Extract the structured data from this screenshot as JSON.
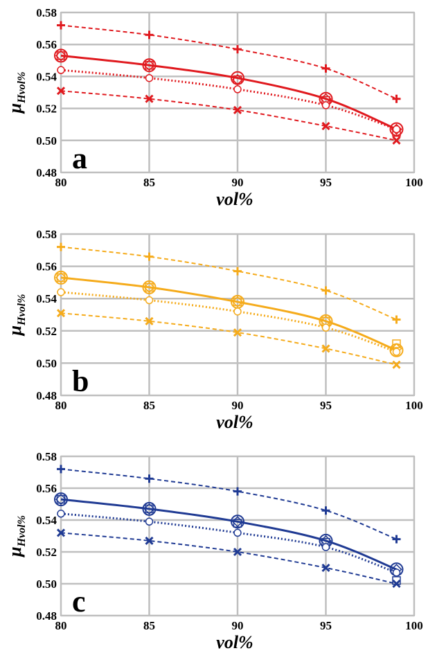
{
  "chart_data": [
    {
      "type": "line",
      "panel_label": "a",
      "color": "#e0191e",
      "xlabel": "vol%",
      "ylabel_main": "μ",
      "ylabel_sub": "Hvol%",
      "xlim": [
        80,
        100
      ],
      "ylim": [
        0.48,
        0.58
      ],
      "xticks": [
        "80",
        "85",
        "90",
        "95",
        "100"
      ],
      "yticks": [
        "0.48",
        "0.50",
        "0.52",
        "0.54",
        "0.56",
        "0.58"
      ],
      "grid": true,
      "x": [
        80,
        85,
        90,
        95,
        99
      ],
      "series": [
        {
          "marker": "plus",
          "line": "dashed",
          "values": [
            0.572,
            0.566,
            0.557,
            0.545,
            0.526
          ]
        },
        {
          "marker": "circle-large",
          "line": "solid",
          "values": [
            0.553,
            0.547,
            0.539,
            0.526,
            0.507
          ]
        },
        {
          "marker": "diamond",
          "line": "none",
          "values": [
            0.553,
            0.547,
            0.538,
            0.526,
            0.507
          ]
        },
        {
          "marker": "square",
          "line": "none",
          "values": [
            0.553,
            0.547,
            0.538,
            0.525,
            0.505
          ]
        },
        {
          "marker": "circle-small",
          "line": "dotted",
          "values": [
            0.544,
            0.539,
            0.532,
            0.522,
            0.507
          ]
        },
        {
          "marker": "cross",
          "line": "dashed",
          "values": [
            0.531,
            0.526,
            0.519,
            0.509,
            0.5
          ]
        }
      ]
    },
    {
      "type": "line",
      "panel_label": "b",
      "color": "#f5ab1b",
      "xlabel": "vol%",
      "ylabel_main": "μ",
      "ylabel_sub": "Hvol%",
      "xlim": [
        80,
        100
      ],
      "ylim": [
        0.48,
        0.58
      ],
      "xticks": [
        "80",
        "85",
        "90",
        "95",
        "100"
      ],
      "yticks": [
        "0.48",
        "0.50",
        "0.52",
        "0.54",
        "0.56",
        "0.58"
      ],
      "grid": true,
      "x": [
        80,
        85,
        90,
        95,
        99
      ],
      "series": [
        {
          "marker": "plus",
          "line": "dashed",
          "values": [
            0.572,
            0.566,
            0.557,
            0.545,
            0.527
          ]
        },
        {
          "marker": "circle-large",
          "line": "solid",
          "values": [
            0.553,
            0.547,
            0.538,
            0.526,
            0.508
          ]
        },
        {
          "marker": "diamond",
          "line": "none",
          "values": [
            0.553,
            0.547,
            0.538,
            0.526,
            0.509
          ]
        },
        {
          "marker": "square",
          "line": "none",
          "values": [
            0.553,
            0.547,
            0.538,
            0.526,
            0.512
          ]
        },
        {
          "marker": "circle-small",
          "line": "dotted",
          "values": [
            0.544,
            0.539,
            0.532,
            0.522,
            0.507
          ]
        },
        {
          "marker": "cross",
          "line": "dashed",
          "values": [
            0.531,
            0.526,
            0.519,
            0.509,
            0.499
          ]
        }
      ]
    },
    {
      "type": "line",
      "panel_label": "c",
      "color": "#1f3a93",
      "xlabel": "vol%",
      "ylabel_main": "μ",
      "ylabel_sub": "Hvol%",
      "xlim": [
        80,
        100
      ],
      "ylim": [
        0.48,
        0.58
      ],
      "xticks": [
        "80",
        "85",
        "90",
        "95",
        "100"
      ],
      "yticks": [
        "0.48",
        "0.50",
        "0.52",
        "0.54",
        "0.56",
        "0.58"
      ],
      "grid": true,
      "x": [
        80,
        85,
        90,
        95,
        99
      ],
      "series": [
        {
          "marker": "plus",
          "line": "dashed",
          "values": [
            0.572,
            0.566,
            0.558,
            0.546,
            0.528
          ]
        },
        {
          "marker": "circle-large",
          "line": "solid",
          "values": [
            0.553,
            0.547,
            0.539,
            0.527,
            0.509
          ]
        },
        {
          "marker": "diamond",
          "line": "none",
          "values": [
            0.553,
            0.547,
            0.539,
            0.527,
            0.509
          ]
        },
        {
          "marker": "square",
          "line": "none",
          "values": [
            0.553,
            0.547,
            0.538,
            0.526,
            0.502
          ]
        },
        {
          "marker": "circle-small",
          "line": "dotted",
          "values": [
            0.544,
            0.539,
            0.532,
            0.523,
            0.507
          ]
        },
        {
          "marker": "cross",
          "line": "dashed",
          "values": [
            0.532,
            0.527,
            0.52,
            0.51,
            0.5
          ]
        }
      ]
    }
  ]
}
